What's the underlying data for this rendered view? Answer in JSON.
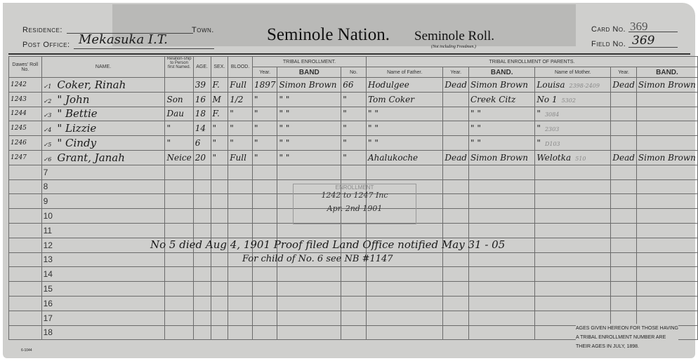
{
  "header": {
    "residence_label": "Residence:",
    "town_label": "Town.",
    "post_office_label": "Post Office:",
    "post_office": "Mekasuka I.T.",
    "nation_title": "Seminole Nation.",
    "roll_title": "Seminole Roll.",
    "roll_subtitle": "(Not including Freedmen.)",
    "card_label": "Card No.",
    "card_no": "369",
    "field_label": "Field No.",
    "field_no": "369"
  },
  "columns": {
    "dawes": "Dawes' Roll No.",
    "name": "NAME.",
    "relationship": "Relation-ship to Person first Named.",
    "age": "AGE.",
    "sex": "SEX.",
    "blood": "BLOOD.",
    "tribal_enrollment": "TRIBAL ENROLLMENT.",
    "year": "Year.",
    "band": "BAND",
    "no": "No.",
    "parents": "TRIBAL ENROLLMENT OF PARENTS.",
    "father": "Name of Father.",
    "father_year": "Year.",
    "father_band": "BAND.",
    "mother": "Name of Mother.",
    "mother_year": "Year.",
    "mother_band": "BAND."
  },
  "rows": [
    {
      "dawes": "1242",
      "line": "✓1",
      "name": "Coker, Rinah",
      "rel": "",
      "age": "39",
      "sex": "F.",
      "blood": "Full",
      "year": "1897",
      "band": "Simon Brown",
      "no": "66",
      "father": "Hodulgee",
      "fyear": "Dead",
      "fband": "Simon Brown",
      "mother": "Louisa",
      "mnote": "2398-2409",
      "myear": "Dead",
      "mband": "Simon Brown"
    },
    {
      "dawes": "1243",
      "line": "✓2",
      "name": "\"   John",
      "rel": "Son",
      "age": "16",
      "sex": "M",
      "blood": "1/2",
      "year": "\"",
      "band": "\"   \"",
      "no": "\"",
      "father": "Tom Coker",
      "fyear": "",
      "fband": "Creek Citz",
      "mother": "No 1",
      "mnote": "5302",
      "myear": "",
      "mband": ""
    },
    {
      "dawes": "1244",
      "line": "✓3",
      "name": "\"   Bettie",
      "rel": "Dau",
      "age": "18",
      "sex": "F.",
      "blood": "\"",
      "year": "\"",
      "band": "\"   \"",
      "no": "\"",
      "father": "\"   \"",
      "fyear": "",
      "fband": "\"   \"",
      "mother": "\"",
      "mnote": "3084",
      "myear": "",
      "mband": ""
    },
    {
      "dawes": "1245",
      "line": "✓4",
      "name": "\"   Lizzie",
      "rel": "\"",
      "age": "14",
      "sex": "\"",
      "blood": "\"",
      "year": "\"",
      "band": "\"   \"",
      "no": "\"",
      "father": "\"   \"",
      "fyear": "",
      "fband": "\"   \"",
      "mother": "\"",
      "mnote": "2303",
      "myear": "",
      "mband": ""
    },
    {
      "dawes": "1246",
      "line": "✓5",
      "name": "\"   Cindy",
      "rel": "\"",
      "age": "6",
      "sex": "\"",
      "blood": "\"",
      "year": "\"",
      "band": "\"   \"",
      "no": "\"",
      "father": "\"   \"",
      "fyear": "",
      "fband": "\"   \"",
      "mother": "\"",
      "mnote": "D103",
      "myear": "",
      "mband": ""
    },
    {
      "dawes": "1247",
      "line": "✓6",
      "name": "Grant, Janah",
      "rel": "Neice",
      "age": "20",
      "sex": "\"",
      "blood": "Full",
      "year": "\"",
      "band": "\"   \"",
      "no": "\"",
      "father": "Ahalukoche",
      "fyear": "Dead",
      "fband": "Simon Brown",
      "mother": "Welotka",
      "mnote": "510",
      "myear": "Dead",
      "mband": "Simon Brown"
    }
  ],
  "empty_row_numbers": [
    "7",
    "8",
    "9",
    "10",
    "11",
    "12",
    "13",
    "14",
    "15",
    "16",
    "17",
    "18"
  ],
  "stamp": {
    "title": "ENROLLMENT",
    "range": "1242 to 1247 Inc",
    "date": "Apr. 2nd 1901"
  },
  "notes": [
    "No 5 died Aug 4, 1901 Proof filed Land Office notified   May 31 - 05",
    "For child of No. 6 see NB #1147"
  ],
  "footer": {
    "form_no": "6-1044",
    "age_note": [
      "AGES GIVEN HEREON FOR THOSE HAVING",
      "A TRIBAL ENROLLMENT NUMBER ARE",
      "THEIR AGES IN JULY, 1898."
    ]
  }
}
